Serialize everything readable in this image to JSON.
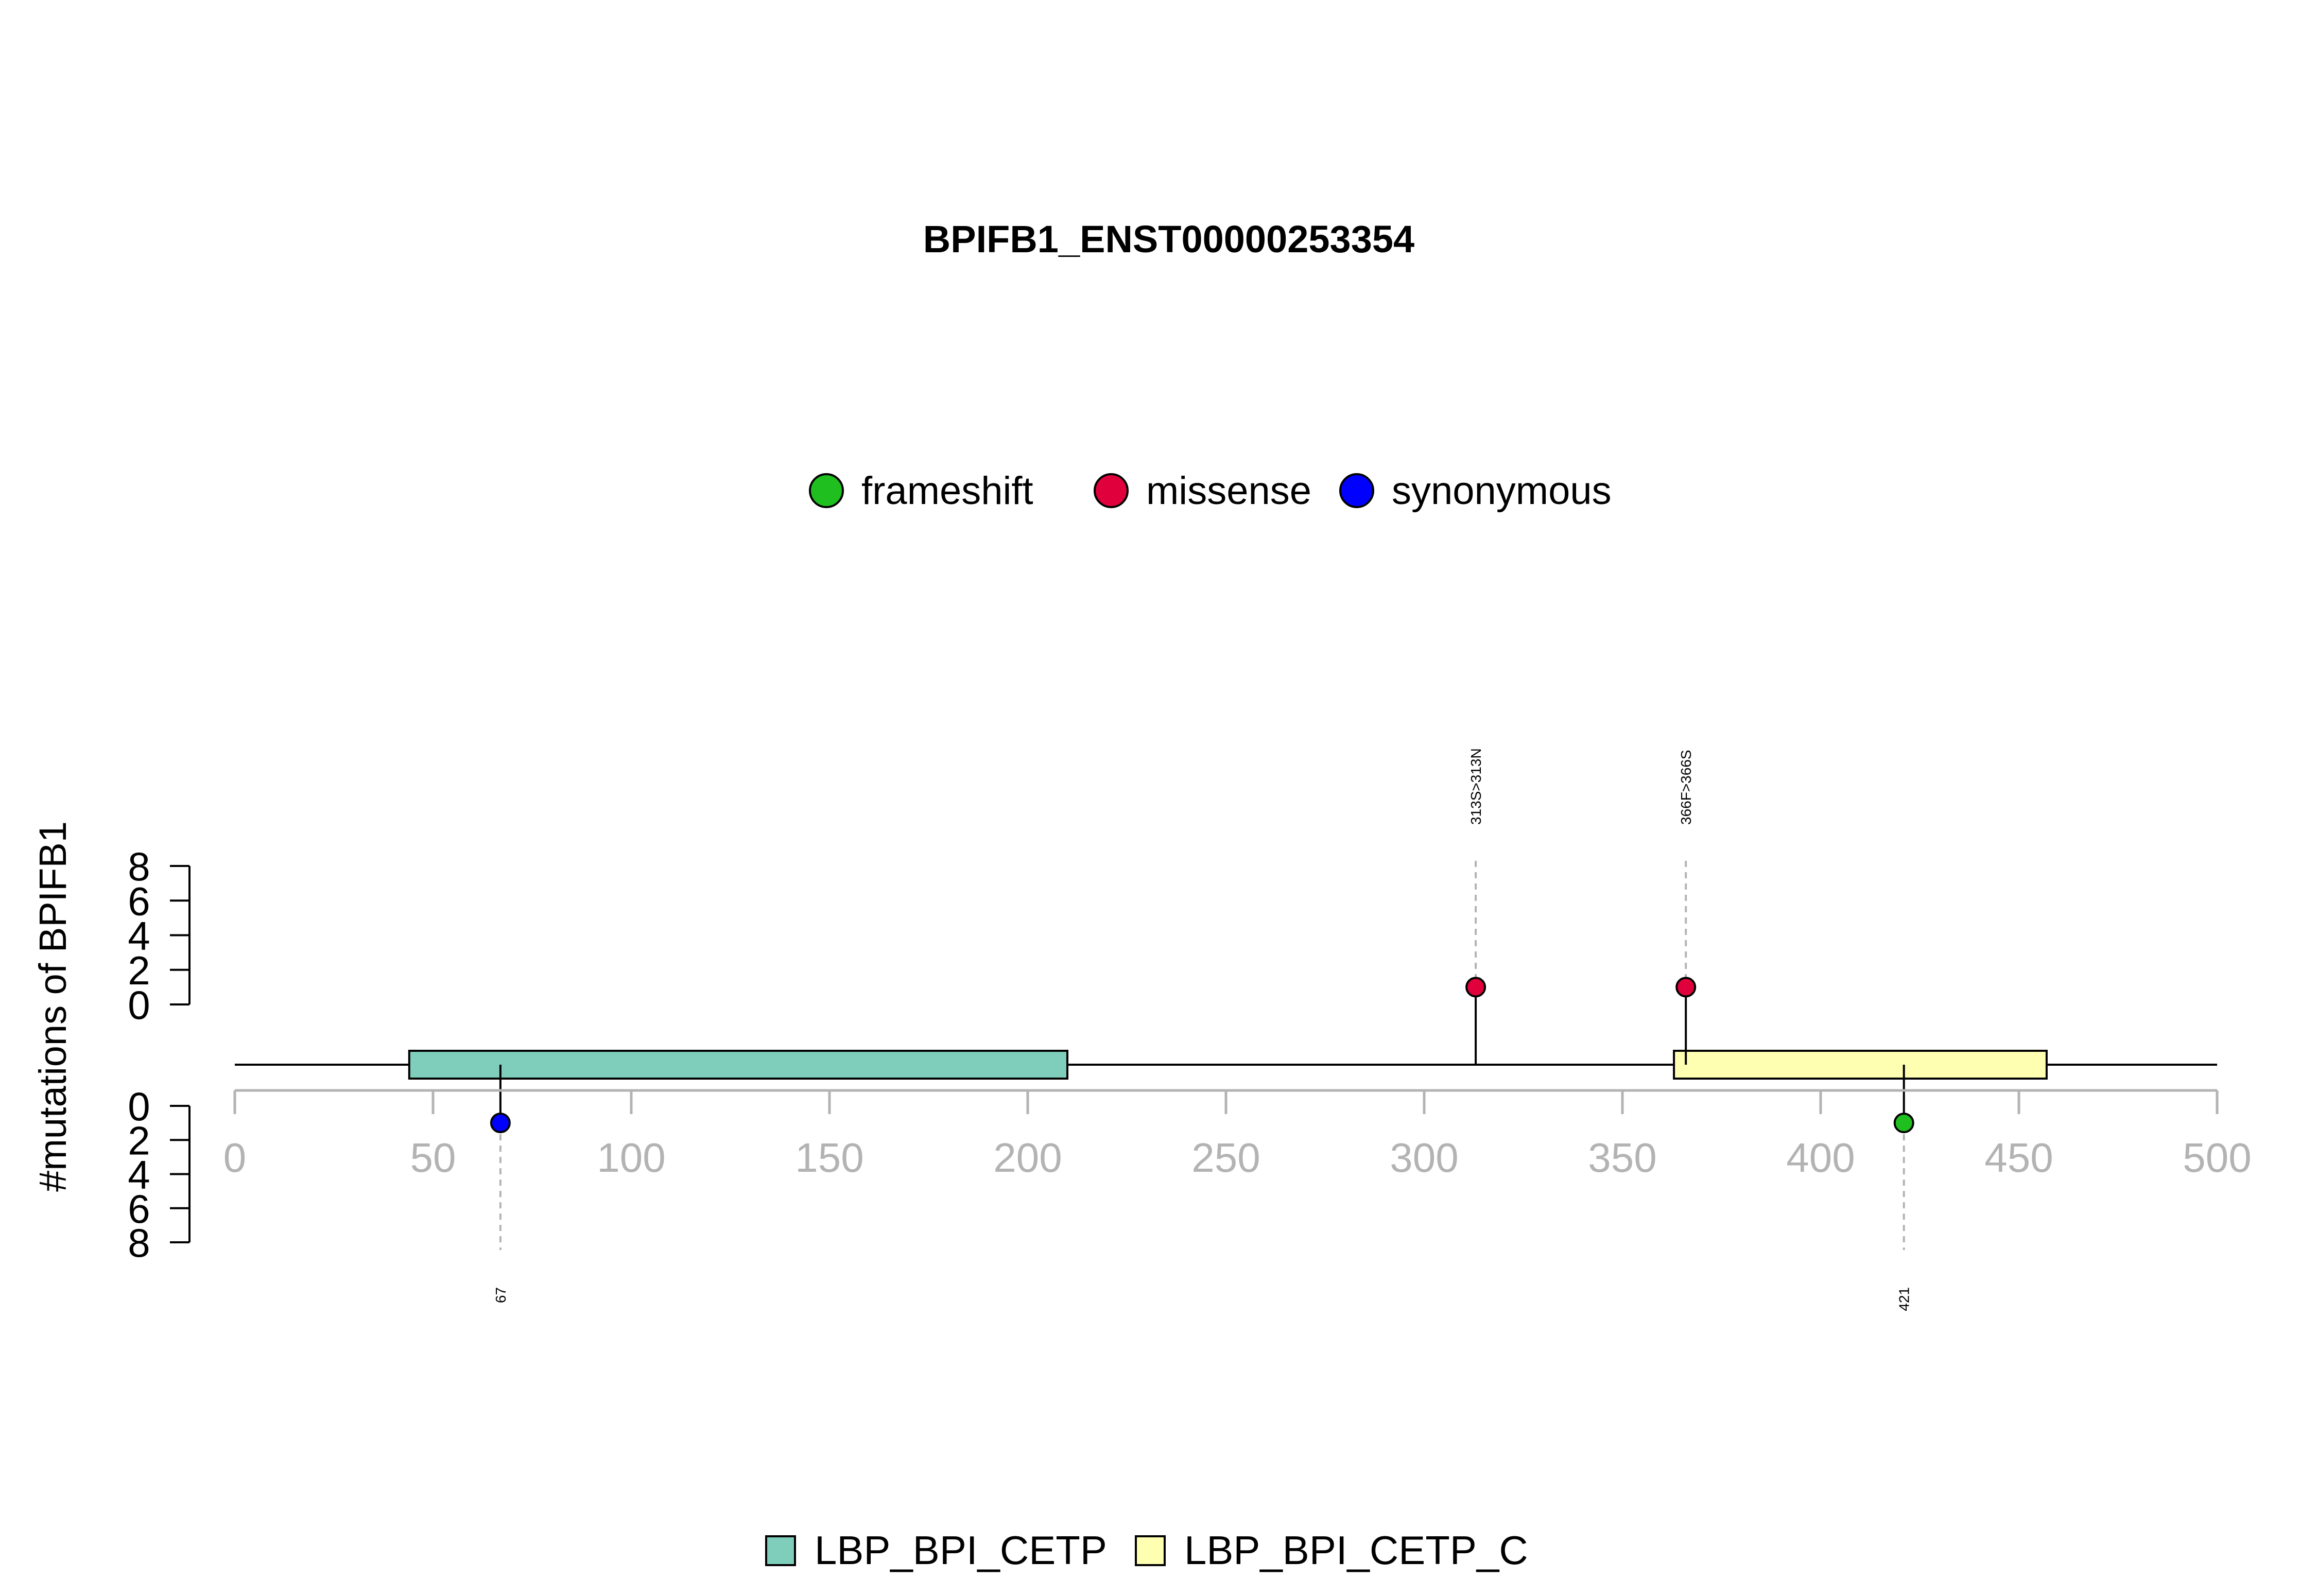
{
  "chart_data": {
    "type": "lollipop",
    "title": "BPIFB1_ENST00000253354",
    "ylabel": "#mutations of BPIFB1",
    "xlim": [
      0,
      500
    ],
    "x_ticks": [
      0,
      50,
      100,
      150,
      200,
      250,
      300,
      350,
      400,
      450,
      500
    ],
    "y_ticks_top": [
      0,
      2,
      4,
      6,
      8
    ],
    "y_ticks_bottom": [
      0,
      2,
      4,
      6,
      8
    ],
    "ylim": [
      0,
      8
    ],
    "mutation_legend": [
      {
        "name": "frameshift",
        "color": "#1fbf1f"
      },
      {
        "name": "missense",
        "color": "#e0003c"
      },
      {
        "name": "synonymous",
        "color": "#0000ff"
      }
    ],
    "domain_legend": [
      {
        "name": "LBP_BPI_CETP",
        "color": "#7fcdbb"
      },
      {
        "name": "LBP_BPI_CETP_C",
        "color": "#ffffb2"
      }
    ],
    "domains": [
      {
        "name": "LBP_BPI_CETP",
        "start": 44,
        "end": 210,
        "color": "#7fcdbb"
      },
      {
        "name": "LBP_BPI_CETP_C",
        "start": 363,
        "end": 457,
        "color": "#ffffb2"
      }
    ],
    "mutations": [
      {
        "position": 313,
        "count": 1,
        "type": "missense",
        "label": "313S>313N",
        "side": "top"
      },
      {
        "position": 366,
        "count": 1,
        "type": "missense",
        "label": "366F>366S",
        "side": "top"
      },
      {
        "position": 67,
        "count": 1,
        "type": "synonymous",
        "label": "67",
        "side": "bottom"
      },
      {
        "position": 421,
        "count": 1,
        "type": "frameshift",
        "label": "421",
        "side": "bottom"
      }
    ],
    "protein_length": 500,
    "grid": false
  },
  "colors": {
    "axis_gray": "#b3b3b3",
    "line": "#000000",
    "dashed": "#b3b3b3"
  }
}
